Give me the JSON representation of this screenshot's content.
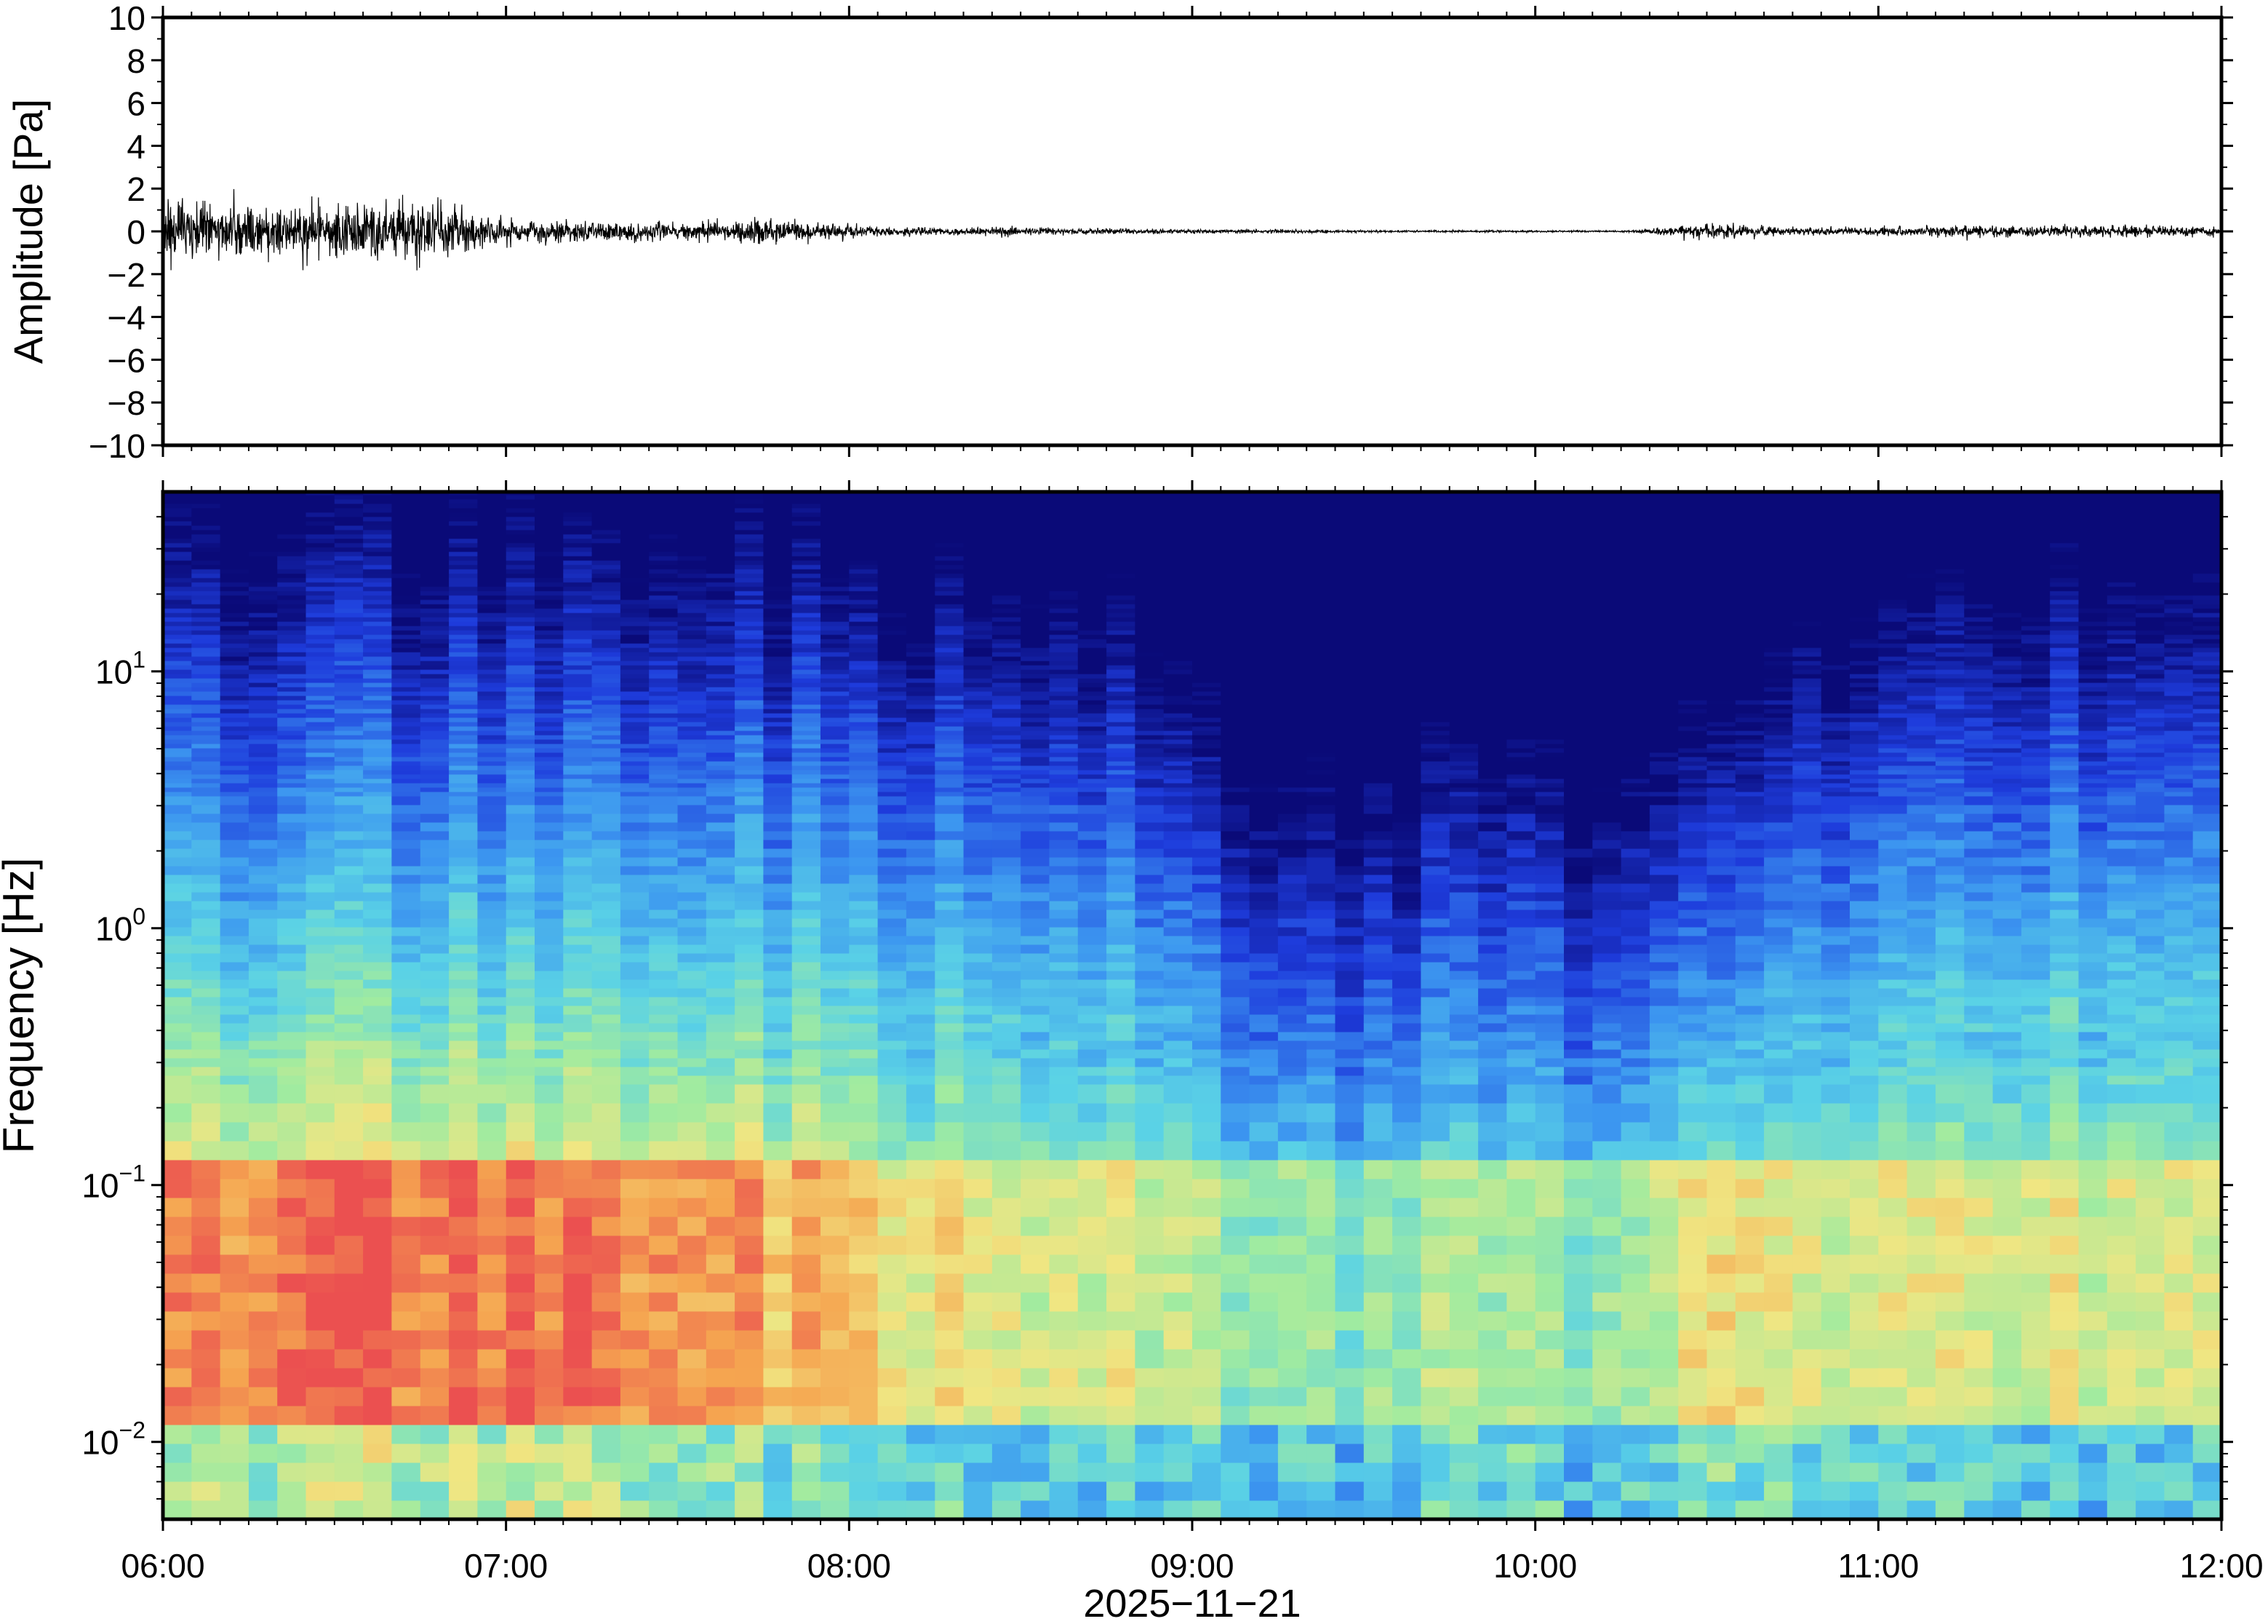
{
  "chart_data": [
    {
      "type": "line",
      "panel": "waveform",
      "ylabel": "Amplitude [Pa]",
      "ylim": [
        -10,
        10
      ],
      "yticks": [
        10,
        8,
        6,
        4,
        2,
        0,
        -2,
        -4,
        -6,
        -8,
        -10
      ],
      "ytick_labels": [
        "10",
        "8",
        "6",
        "4",
        "2",
        "0",
        "−2",
        "−4",
        "−6",
        "−8",
        "−10"
      ],
      "xlim": [
        "06:00",
        "12:00"
      ],
      "series": [
        {
          "color": "#000000",
          "envelope_time": [
            "06:00",
            "06:15",
            "06:30",
            "06:45",
            "07:00",
            "07:15",
            "07:30",
            "07:45",
            "08:00",
            "08:15",
            "08:30",
            "08:45",
            "09:00",
            "09:15",
            "09:30",
            "09:45",
            "10:00",
            "10:15",
            "10:30",
            "10:45",
            "11:00",
            "11:15",
            "11:30",
            "11:45",
            "12:00"
          ],
          "envelope_amplitude_pa": [
            1.1,
            1.1,
            1.0,
            1.3,
            0.5,
            0.4,
            0.35,
            0.5,
            0.25,
            0.15,
            0.15,
            0.1,
            0.08,
            0.08,
            0.05,
            0.04,
            0.04,
            0.03,
            0.3,
            0.15,
            0.15,
            0.25,
            0.2,
            0.25,
            0.15
          ]
        }
      ]
    },
    {
      "type": "heatmap",
      "panel": "spectrogram",
      "ylabel": "Frequency [Hz]",
      "xlabel": "2025−11−21",
      "yscale": "log",
      "ylim_hz": [
        0.005,
        50
      ],
      "yticks": [
        {
          "base": "10",
          "exp": "1"
        },
        {
          "base": "10",
          "exp": "0"
        },
        {
          "base": "10",
          "exp": "−1"
        },
        {
          "base": "10",
          "exp": "−2"
        }
      ],
      "xticks": [
        "06:00",
        "07:00",
        "08:00",
        "09:00",
        "10:00",
        "11:00",
        "12:00"
      ],
      "colormap": [
        "#0a0a78",
        "#1e3cdc",
        "#3c96f0",
        "#5ad2e6",
        "#a0eba0",
        "#f0e682",
        "#f5a550",
        "#eb5050"
      ],
      "grid": false
    }
  ]
}
